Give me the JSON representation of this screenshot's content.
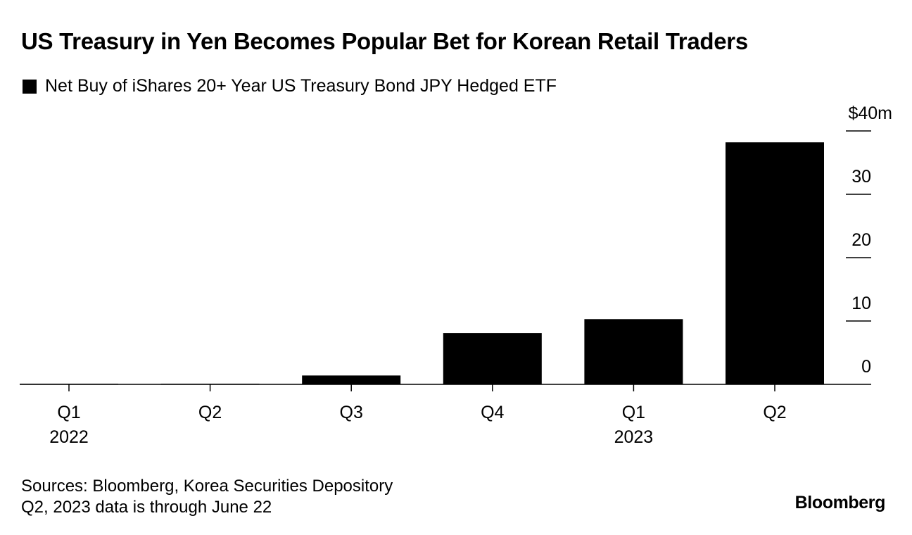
{
  "chart_data": {
    "type": "bar",
    "title": "US Treasury in Yen Becomes Popular Bet for Korean Retail Traders",
    "series": [
      {
        "name": "Net Buy of iShares 20+ Year US Treasury Bond JPY Hedged ETF",
        "color": "#000000",
        "values": [
          0.1,
          0.1,
          1.4,
          8.1,
          10.3,
          38.2
        ]
      }
    ],
    "categories": [
      "Q1",
      "Q2",
      "Q3",
      "Q4",
      "Q1",
      "Q2"
    ],
    "year_labels": [
      "2022",
      "",
      "",
      "",
      "2023",
      ""
    ],
    "ylim": [
      0,
      40
    ],
    "y_ticks": [
      {
        "value": 0,
        "label": "0"
      },
      {
        "value": 10,
        "label": "10"
      },
      {
        "value": 20,
        "label": "20"
      },
      {
        "value": 30,
        "label": "30"
      },
      {
        "value": 40,
        "label": "$40m"
      }
    ],
    "xlabel": "",
    "ylabel": "",
    "legend_position": "top-left",
    "grid": false
  },
  "footer": {
    "sources": "Sources: Bloomberg, Korea Securities Depository",
    "note": "Q2, 2023 data is through June 22"
  },
  "brand": "Bloomberg"
}
